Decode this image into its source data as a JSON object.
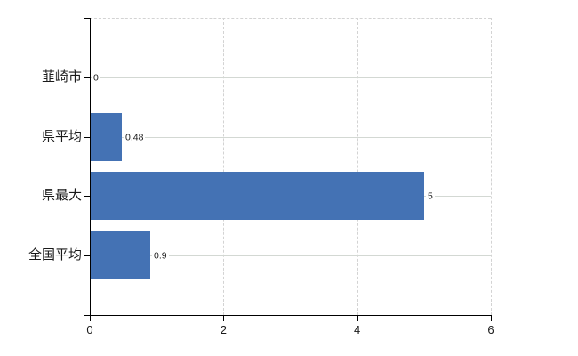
{
  "chart_data": {
    "type": "bar",
    "orientation": "horizontal",
    "categories": [
      "韮崎市",
      "県平均",
      "県最大",
      "全国平均"
    ],
    "values": [
      0,
      0.48,
      5,
      0.9
    ],
    "value_labels": [
      "0",
      "0.48",
      "5",
      "0.9"
    ],
    "xlim": [
      0,
      6
    ],
    "xticks": [
      0,
      2,
      4,
      6
    ],
    "xtick_labels": [
      "0",
      "2",
      "4",
      "6"
    ],
    "grid": true,
    "legend": false,
    "colors": {
      "bar": "#4472b4",
      "grid_solid": "#d3d8d3",
      "grid_dashed": "#d3d3d3",
      "axis": "#000000",
      "text": "#1a1a1a"
    }
  }
}
